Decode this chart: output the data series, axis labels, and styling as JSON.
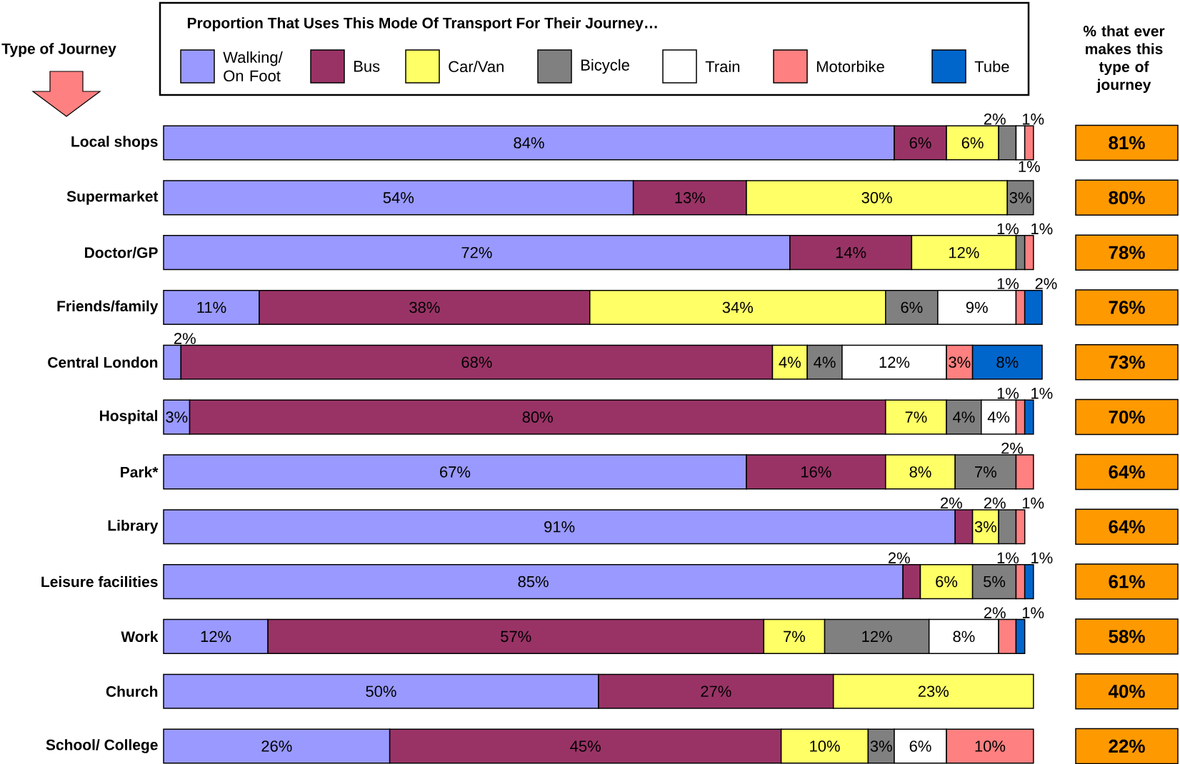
{
  "chart_data": [
    {
      "type": "bar",
      "orientation": "horizontal",
      "stacked": true,
      "legend": "top",
      "tick_labels": "y",
      "legend_title": "Proportion That Uses This Mode Of Transport For Their Journey…",
      "ylabel": "Type of Journey",
      "categories": [
        "Local shops",
        "Supermarket",
        "Doctor/GP",
        "Friends/family",
        "Central London",
        "Hospital",
        "Park*",
        "Library",
        "Leisure facilities",
        "Work",
        "Church",
        "School/ College"
      ],
      "xlim": [
        0,
        101
      ],
      "series": [
        {
          "name": "Walking/ On Foot",
          "color": "#9999ff",
          "values": [
            84,
            54,
            72,
            11,
            2,
            3,
            67,
            91,
            85,
            12,
            50,
            26
          ],
          "value_labels": [
            "84%",
            "54%",
            "72%",
            "11%",
            "2%",
            "3%",
            "67%",
            "91%",
            "85%",
            "12%",
            "50%",
            "26%"
          ]
        },
        {
          "name": "Bus",
          "color": "#993366",
          "values": [
            6,
            13,
            14,
            38,
            68,
            80,
            16,
            2,
            2,
            57,
            27,
            45
          ],
          "value_labels": [
            "6%",
            "13%",
            "14%",
            "38%",
            "68%",
            "80%",
            "16%",
            "2%",
            "2%",
            "57%",
            "27%",
            "45%"
          ]
        },
        {
          "name": "Car/Van",
          "color": "#ffff66",
          "values": [
            6,
            30,
            12,
            34,
            4,
            7,
            8,
            3,
            6,
            7,
            23,
            10
          ],
          "value_labels": [
            "6%",
            "30%",
            "12%",
            "34%",
            "4%",
            "7%",
            "8%",
            "3%",
            "6%",
            "7%",
            "23%",
            "10%"
          ]
        },
        {
          "name": "Bicycle",
          "color": "#808080",
          "values": [
            2,
            3,
            1,
            6,
            4,
            4,
            7,
            2,
            5,
            12,
            null,
            3
          ],
          "value_labels": [
            "2%",
            "3%",
            "1%",
            "6%",
            "4%",
            "4%",
            "7%",
            "2%",
            "5%",
            "12%",
            null,
            "3%"
          ]
        },
        {
          "name": "Train",
          "color": "#ffffff",
          "values": [
            1,
            null,
            null,
            9,
            12,
            4,
            null,
            null,
            null,
            8,
            null,
            6
          ],
          "value_labels": [
            "1%",
            null,
            null,
            "9%",
            "12%",
            "4%",
            null,
            null,
            null,
            "8%",
            null,
            "6%"
          ]
        },
        {
          "name": "Motorbike",
          "color": "#ff8080",
          "values": [
            1,
            null,
            1,
            1,
            3,
            1,
            2,
            1,
            1,
            2,
            null,
            10
          ],
          "value_labels": [
            "1%",
            null,
            "1%",
            "1%",
            "3%",
            "1%",
            "2%",
            "1%",
            "1%",
            "2%",
            null,
            "10%"
          ]
        },
        {
          "name": "Tube",
          "color": "#0066cc",
          "values": [
            null,
            null,
            null,
            2,
            8,
            1,
            null,
            null,
            1,
            1,
            null,
            null
          ],
          "value_labels": [
            null,
            null,
            null,
            "2%",
            "8%",
            "1%",
            null,
            null,
            "1%",
            "1%",
            null,
            null
          ]
        }
      ]
    },
    {
      "type": "other",
      "title": "% that ever makes this type of journey",
      "color": "#ff9900",
      "categories": [
        null,
        null,
        null,
        null,
        null,
        null,
        null,
        null,
        null,
        null,
        null,
        null
      ],
      "value_labels": [
        "81%",
        "80%",
        "78%",
        "76%",
        "73%",
        "70%",
        "64%",
        "64%",
        "61%",
        "58%",
        "40%",
        "22%"
      ]
    }
  ]
}
